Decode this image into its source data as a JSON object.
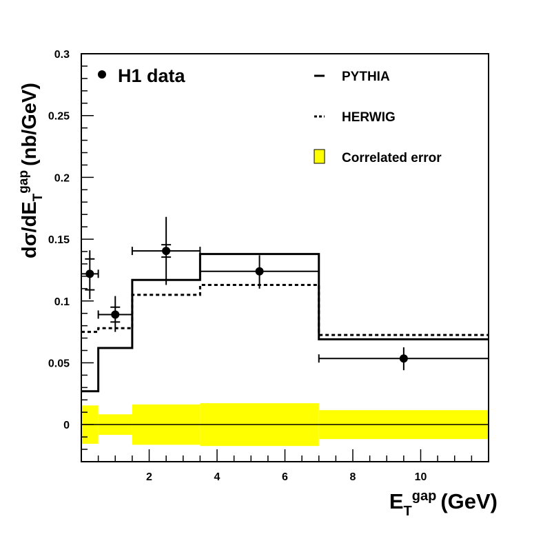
{
  "chart_data": {
    "type": "line",
    "xlabel": {
      "main": "E",
      "sub": "T",
      "sup": "gap",
      "unit": "(GeV)"
    },
    "ylabel": {
      "main": "dσ/dE",
      "sub": "T",
      "sup": "gap",
      "unit": "(nb/GeV)"
    },
    "xlim": [
      0,
      12
    ],
    "ylim": [
      -0.03,
      0.3
    ],
    "x_ticks": [
      2,
      4,
      6,
      8,
      10
    ],
    "x_tick_labels": [
      "2",
      "4",
      "6",
      "8",
      "10"
    ],
    "y_ticks": [
      0,
      0.05,
      0.1,
      0.15,
      0.2,
      0.25,
      0.3
    ],
    "y_tick_labels": [
      "0",
      "0.05",
      "0.1",
      "0.15",
      "0.2",
      "0.25",
      "0.3"
    ],
    "bin_edges": [
      0,
      0.5,
      1.5,
      3.5,
      7,
      12
    ],
    "legend": {
      "data": "H1 data",
      "pythia": "PYTHIA",
      "herwig": "HERWIG",
      "band": "Correlated error"
    },
    "series": [
      {
        "name": "PYTHIA",
        "style": "solid",
        "values": [
          0.027,
          0.062,
          0.117,
          0.138,
          0.069
        ]
      },
      {
        "name": "HERWIG",
        "style": "dashed",
        "values": [
          0.075,
          0.078,
          0.105,
          0.113,
          0.0725
        ]
      },
      {
        "name": "Correlated error",
        "style": "band",
        "color": "#ffff00",
        "values": [
          0.0155,
          0.0083,
          0.0163,
          0.0173,
          0.0117
        ]
      }
    ],
    "data_points": [
      {
        "x": 0.25,
        "xlo": 0,
        "xhi": 0.5,
        "y": 0.122,
        "stat": [
          0.109,
          0.134
        ],
        "total": [
          0.1015,
          0.141
        ]
      },
      {
        "x": 1.0,
        "xlo": 0.5,
        "xhi": 1.5,
        "y": 0.089,
        "stat": [
          0.083,
          0.095
        ],
        "total": [
          0.075,
          0.104
        ]
      },
      {
        "x": 2.5,
        "xlo": 1.5,
        "xhi": 3.5,
        "y": 0.1405,
        "stat": [
          0.1355,
          0.1455
        ],
        "total": [
          0.113,
          0.168
        ]
      },
      {
        "x": 5.25,
        "xlo": 3.5,
        "xhi": 7,
        "y": 0.124,
        "stat": null,
        "total": [
          0.11,
          0.137
        ]
      },
      {
        "x": 9.5,
        "xlo": 7,
        "xhi": 12,
        "y": 0.0535,
        "stat": null,
        "total": [
          0.044,
          0.0625
        ]
      }
    ]
  }
}
